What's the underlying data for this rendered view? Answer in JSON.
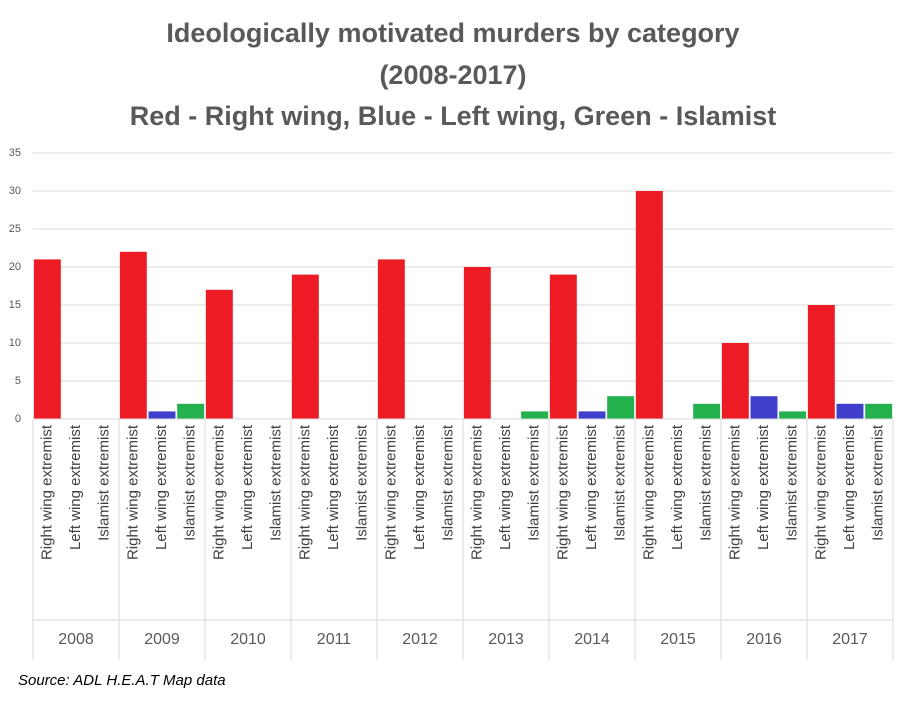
{
  "chart_data": {
    "type": "bar",
    "title": [
      "Ideologically motivated murders by category",
      "(2008-2017)"
    ],
    "subtitle": "Red - Right wing, Blue - Left wing, Green - Islamist",
    "categories": [
      "2008",
      "2009",
      "2010",
      "2011",
      "2012",
      "2013",
      "2014",
      "2015",
      "2016",
      "2017"
    ],
    "series": [
      {
        "name": "Right wing extremist",
        "color": "#ed1c24",
        "values": [
          21,
          22,
          17,
          19,
          21,
          20,
          19,
          30,
          10,
          15
        ]
      },
      {
        "name": "Left wing extremist",
        "color": "#3f3fcc",
        "values": [
          0,
          1,
          0,
          0,
          0,
          0,
          1,
          0,
          3,
          2
        ]
      },
      {
        "name": "Islamist extremist",
        "color": "#22b14c",
        "values": [
          0,
          2,
          0,
          0,
          0,
          1,
          3,
          2,
          1,
          2
        ]
      }
    ],
    "ylim": [
      0,
      35
    ],
    "yticks": [
      0,
      5,
      10,
      15,
      20,
      25,
      30,
      35
    ],
    "grid": true,
    "source": "Source: ADL H.E.A.T Map data"
  }
}
